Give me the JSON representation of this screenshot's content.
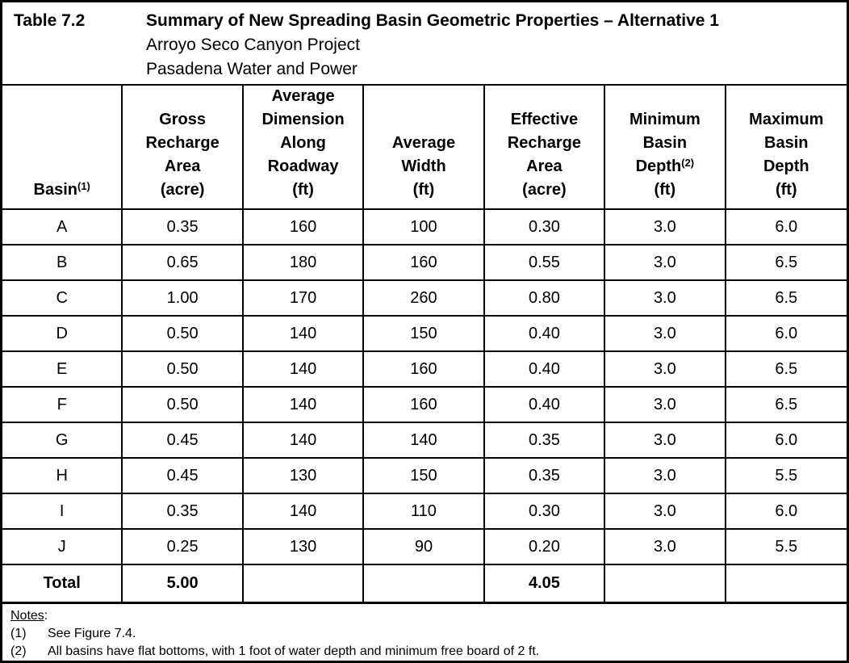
{
  "title": {
    "label": "Table 7.2",
    "heading": "Summary of New Spreading Basin Geometric Properties – Alternative 1",
    "subtitle1": "Arroyo Seco Canyon Project",
    "subtitle2": "Pasadena Water and Power"
  },
  "table": {
    "columns": [
      {
        "name": "basin",
        "lines": [
          "Basin"
        ],
        "footnote": "(1)",
        "footnote_after_line": 0
      },
      {
        "name": "gross-recharge-area",
        "lines": [
          "Gross",
          "Recharge",
          "Area",
          "(acre)"
        ]
      },
      {
        "name": "average-dimension-along-roadway",
        "lines": [
          "Average",
          "Dimension",
          "Along",
          "Roadway",
          "(ft)"
        ]
      },
      {
        "name": "average-width",
        "lines": [
          "Average",
          "Width",
          "(ft)"
        ]
      },
      {
        "name": "effective-recharge-area",
        "lines": [
          "Effective",
          "Recharge",
          "Area",
          "(acre)"
        ]
      },
      {
        "name": "minimum-basin-depth",
        "lines": [
          "Minimum",
          "Basin",
          "Depth",
          "(ft)"
        ],
        "footnote": "(2)",
        "footnote_after_line": 2
      },
      {
        "name": "maximum-basin-depth",
        "lines": [
          "Maximum",
          "Basin",
          "Depth",
          "(ft)"
        ]
      }
    ],
    "rows": [
      {
        "basin": "A",
        "values": [
          "0.35",
          "160",
          "100",
          "0.30",
          "3.0",
          "6.0"
        ]
      },
      {
        "basin": "B",
        "values": [
          "0.65",
          "180",
          "160",
          "0.55",
          "3.0",
          "6.5"
        ]
      },
      {
        "basin": "C",
        "values": [
          "1.00",
          "170",
          "260",
          "0.80",
          "3.0",
          "6.5"
        ]
      },
      {
        "basin": "D",
        "values": [
          "0.50",
          "140",
          "150",
          "0.40",
          "3.0",
          "6.0"
        ]
      },
      {
        "basin": "E",
        "values": [
          "0.50",
          "140",
          "160",
          "0.40",
          "3.0",
          "6.5"
        ]
      },
      {
        "basin": "F",
        "values": [
          "0.50",
          "140",
          "160",
          "0.40",
          "3.0",
          "6.5"
        ]
      },
      {
        "basin": "G",
        "values": [
          "0.45",
          "140",
          "140",
          "0.35",
          "3.0",
          "6.0"
        ]
      },
      {
        "basin": "H",
        "values": [
          "0.45",
          "130",
          "150",
          "0.35",
          "3.0",
          "5.5"
        ]
      },
      {
        "basin": "I",
        "values": [
          "0.35",
          "140",
          "110",
          "0.30",
          "3.0",
          "6.0"
        ]
      },
      {
        "basin": "J",
        "values": [
          "0.25",
          "130",
          "90",
          "0.20",
          "3.0",
          "5.5"
        ]
      }
    ],
    "total": {
      "label": "Total",
      "values": [
        "5.00",
        "",
        "",
        "4.05",
        "",
        ""
      ]
    }
  },
  "notes": {
    "heading": "Notes",
    "colon": ":",
    "items": [
      {
        "num": "(1)",
        "text": "See Figure 7.4."
      },
      {
        "num": "(2)",
        "text": "All basins have flat bottoms, with 1 foot of water depth and minimum free board of 2 ft."
      }
    ]
  },
  "colors": {
    "text": "#000000",
    "border": "#000000",
    "background": "#ffffff"
  }
}
